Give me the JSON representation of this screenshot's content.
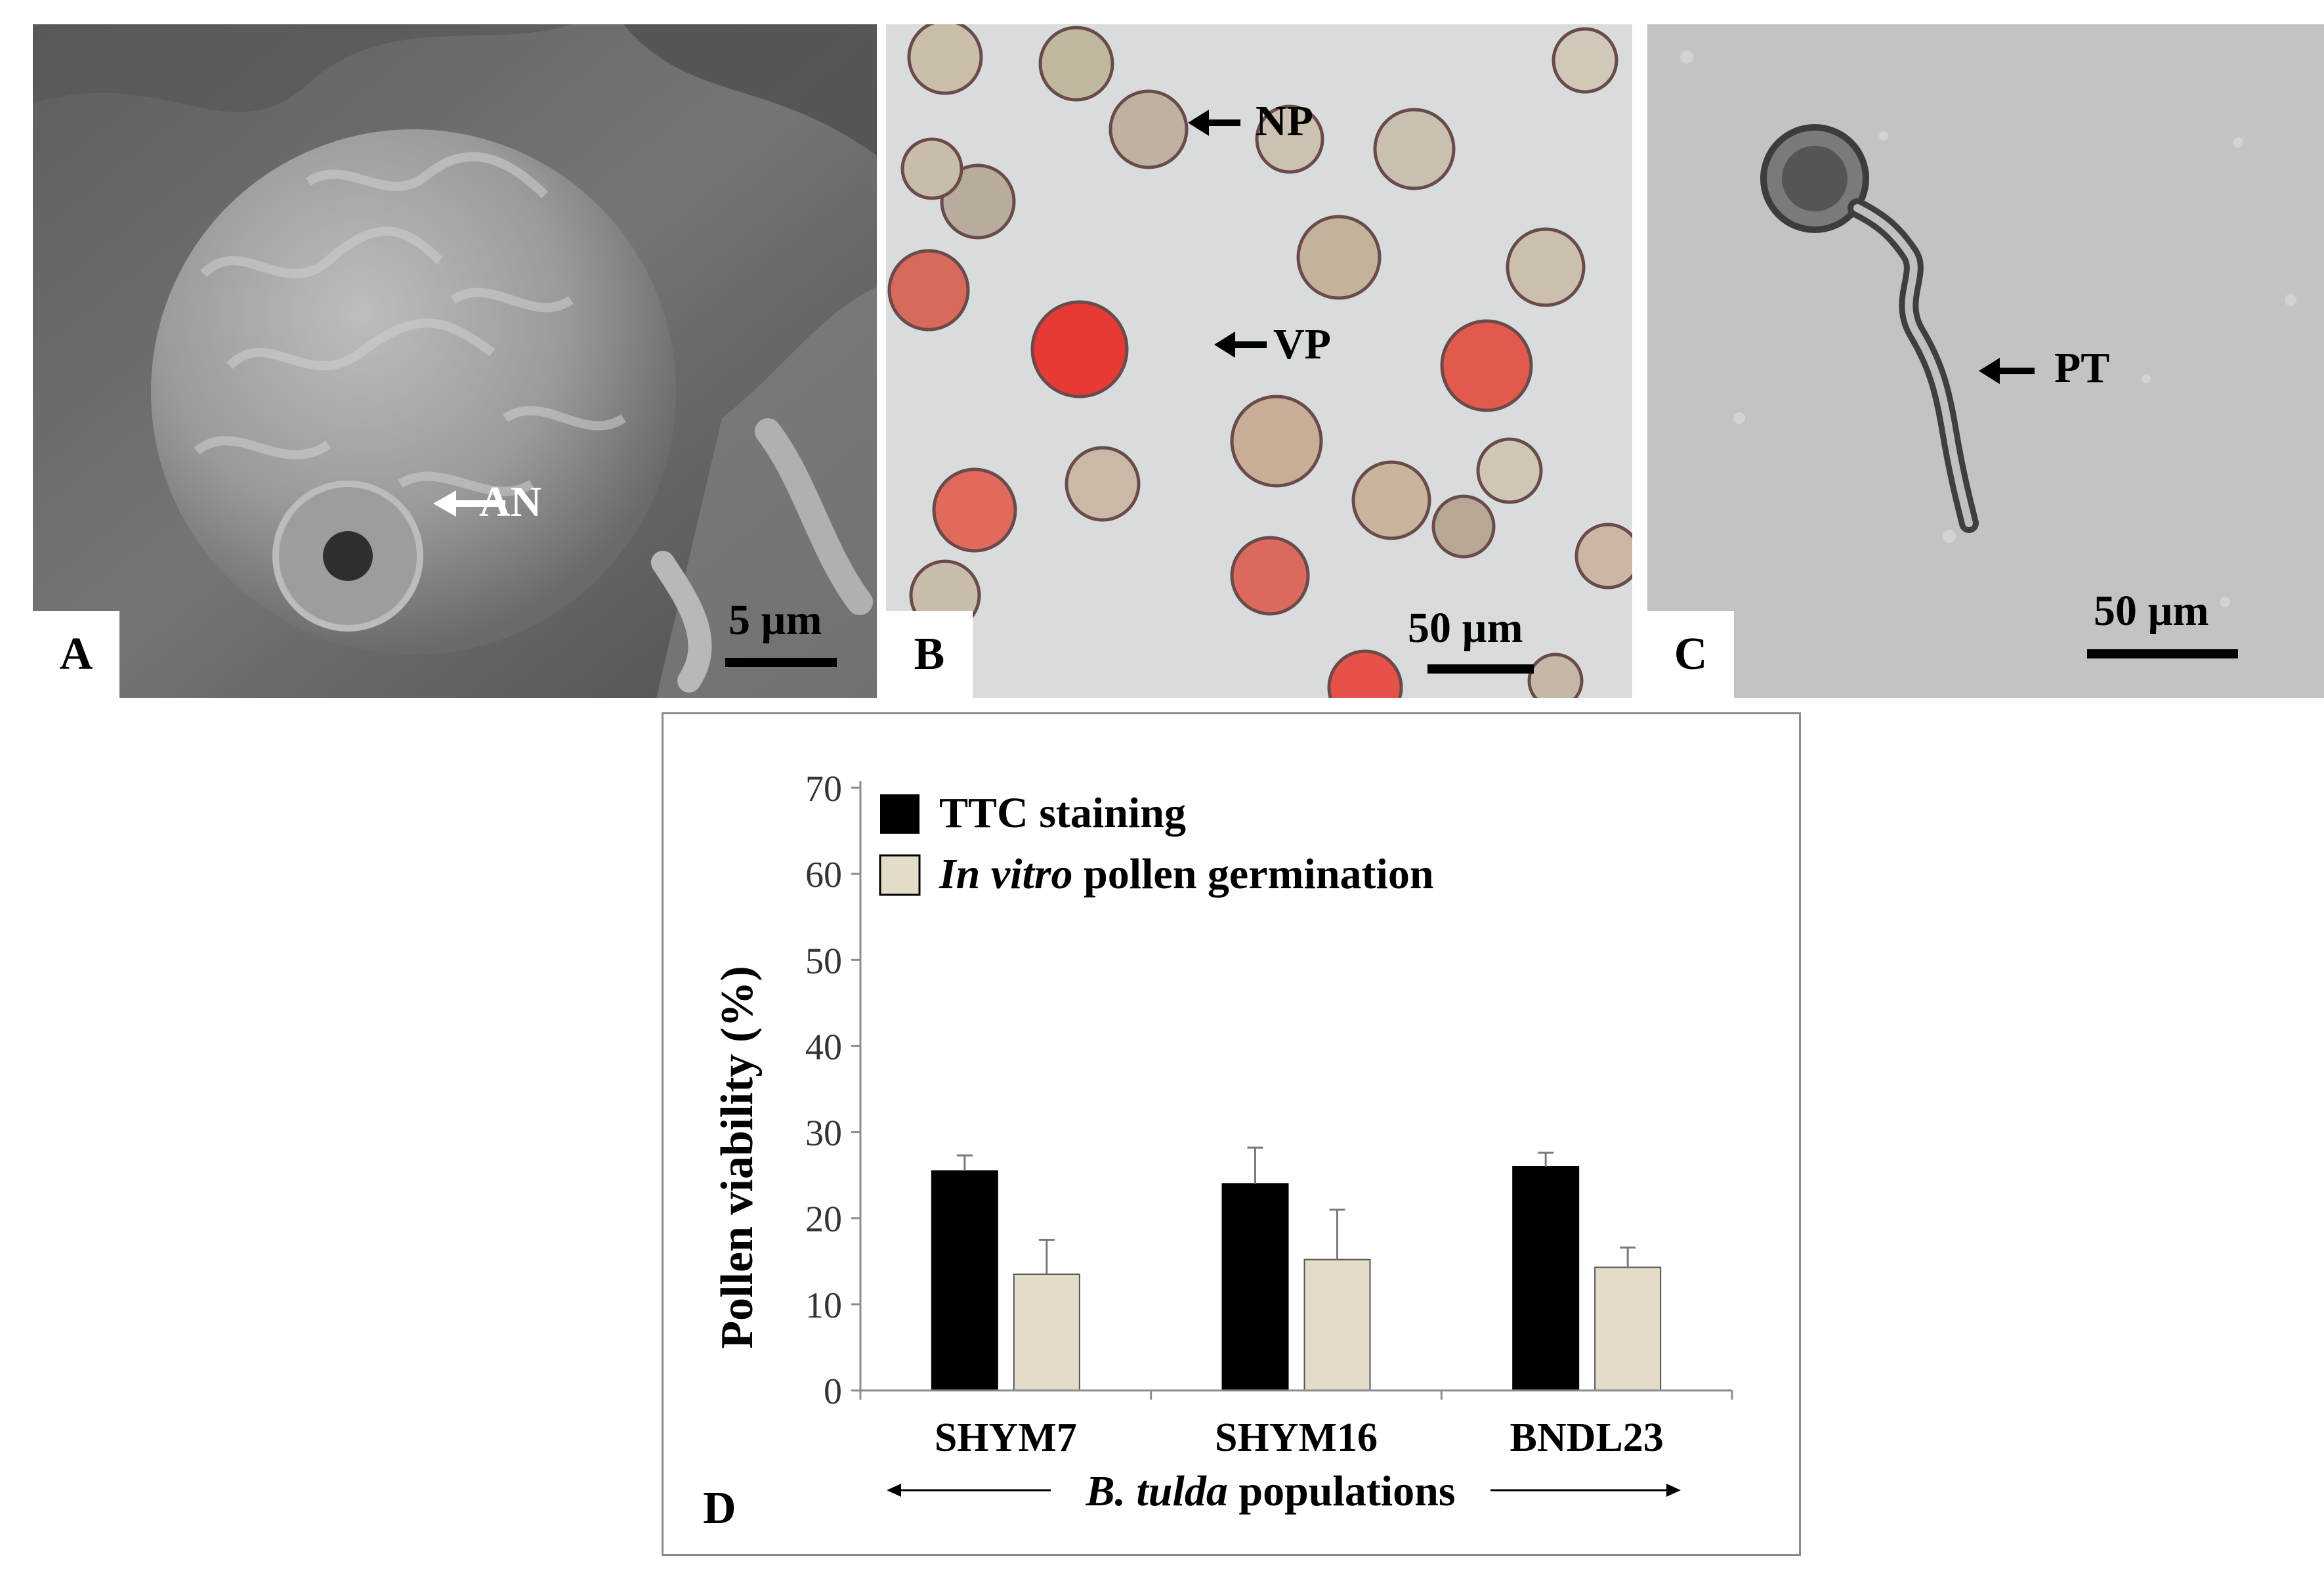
{
  "panels": {
    "a": {
      "letter": "A",
      "arrow_label": "AN",
      "scale": "5 µm"
    },
    "b": {
      "letter": "B",
      "label_np": "NP",
      "label_vp": "VP",
      "scale": "50 µm"
    },
    "c": {
      "letter": "C",
      "label_pt": "PT",
      "scale": "50 µm"
    },
    "d": {
      "letter": "D"
    }
  },
  "colors": {
    "ttc": "#000000",
    "in_vitro": "#e2dcc8",
    "stained_pollen": "#e8504a"
  },
  "chart_data": {
    "type": "bar",
    "categories": [
      "SHYM7",
      "SHYM16",
      "BNDL23"
    ],
    "series": [
      {
        "name": "TTC staining",
        "values": [
          25.5,
          24,
          26
        ],
        "errors": [
          1.8,
          4.2,
          1.6
        ]
      },
      {
        "name_italic": "In vitro",
        "name_rest": " pollen germination",
        "values": [
          13.5,
          15.2,
          14.3
        ],
        "errors": [
          4.0,
          5.8,
          2.3
        ]
      }
    ],
    "ylabel": "Pollen viability (%)",
    "xlabel_italic": "B. tulda",
    "xlabel_rest": " populations",
    "ylim": [
      0,
      70
    ],
    "yticks": [
      0,
      10,
      20,
      30,
      40,
      50,
      60,
      70
    ],
    "legend": "top-left",
    "grid": false
  }
}
